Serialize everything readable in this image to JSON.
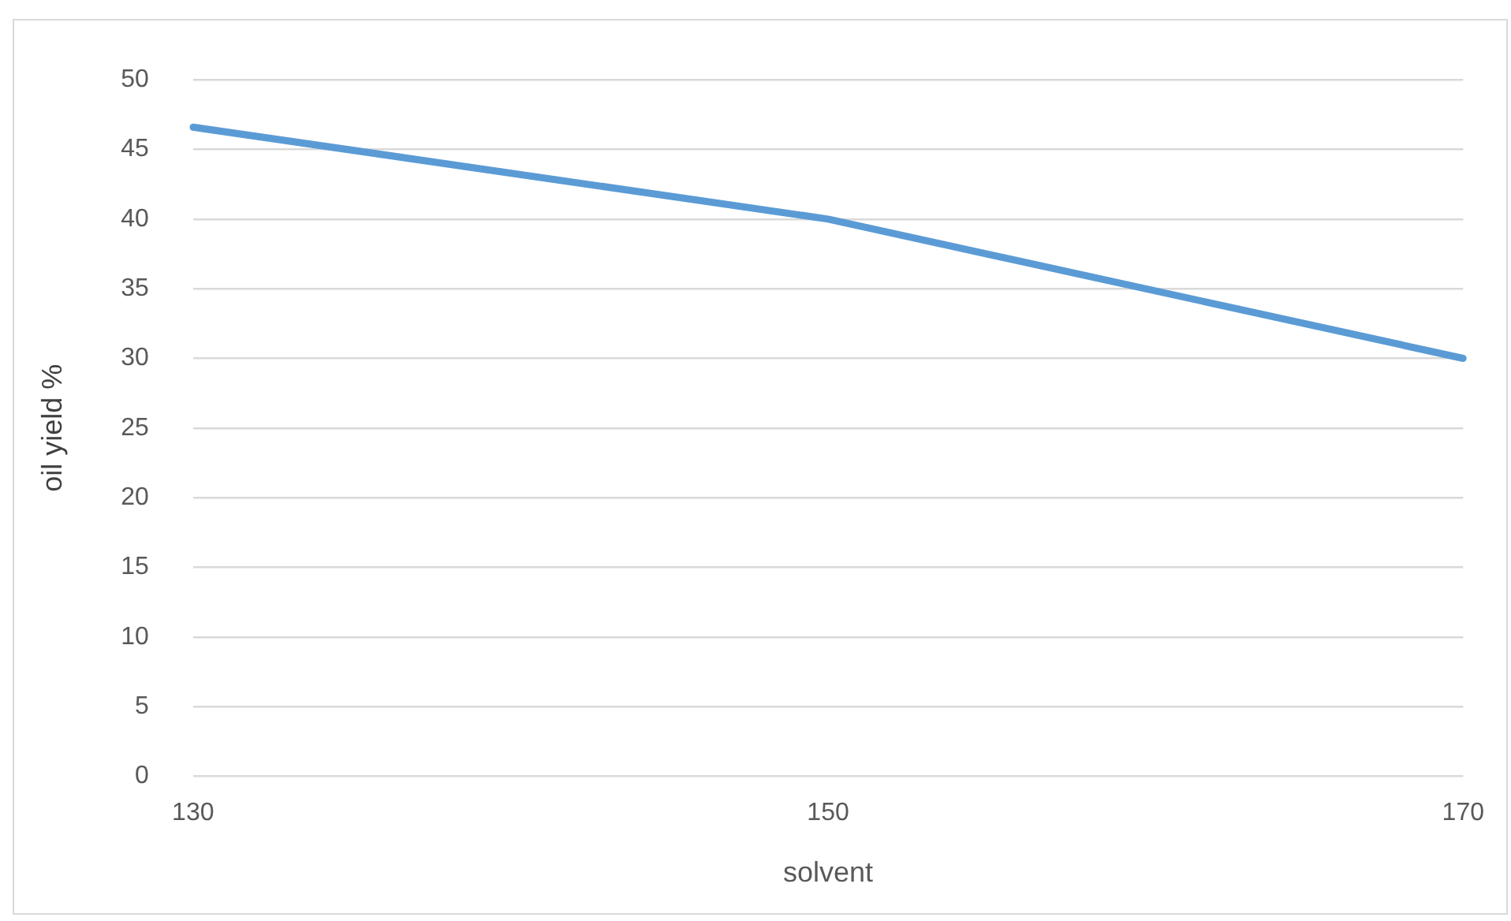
{
  "chart_data": {
    "type": "line",
    "xlabel": "solvent",
    "ylabel": "oil yield %",
    "categories": [
      "130",
      "150",
      "170"
    ],
    "series": [
      {
        "color": "#5b9bd5",
        "values": [
          46.6,
          40,
          30
        ]
      }
    ],
    "ylim": [
      0,
      50
    ],
    "yticks": [
      0,
      5,
      10,
      15,
      20,
      25,
      30,
      35,
      40,
      45,
      50
    ],
    "grid": "y",
    "legend": false,
    "marker": "none",
    "line_style": "solid"
  }
}
